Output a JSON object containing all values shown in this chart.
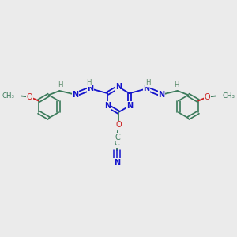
{
  "bg_color": "#ebebeb",
  "bond_color": "#3a7a5a",
  "N_color": "#1414cc",
  "O_color": "#cc2020",
  "H_color": "#5a8a6a",
  "figsize": [
    3.0,
    3.0
  ],
  "dpi": 100,
  "xlim": [
    0,
    10
  ],
  "ylim": [
    0,
    10
  ]
}
